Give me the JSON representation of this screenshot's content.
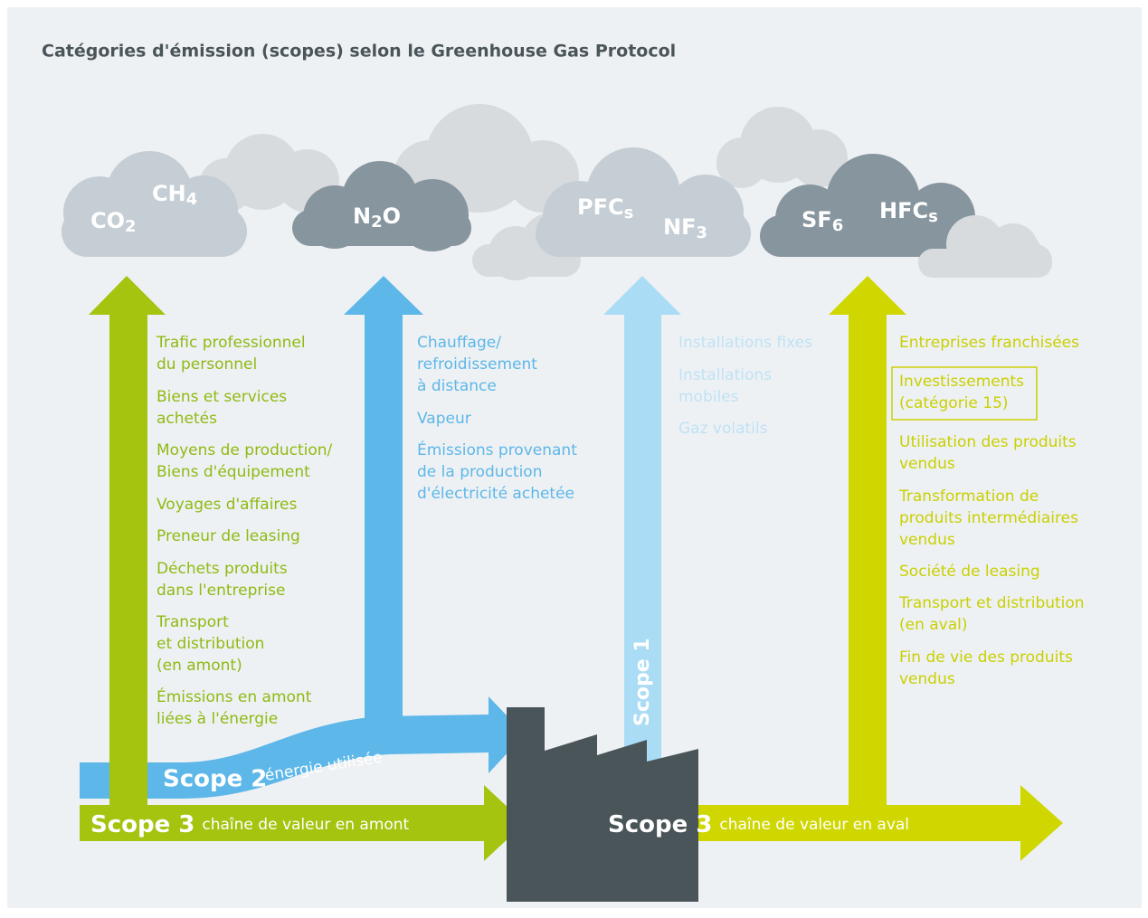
{
  "title": "Catégories d'émission (scopes) selon le Greenhouse Gas Protocol",
  "clouds": [
    [
      {
        "text": "CO"
      },
      {
        "text": "2",
        "sub": true
      }
    ],
    [
      {
        "text": "CH"
      },
      {
        "text": "4",
        "sub": true
      }
    ],
    [
      {
        "text": "N"
      },
      {
        "text": "2",
        "sub": true
      },
      {
        "text": "O"
      }
    ],
    [
      {
        "text": "PFC"
      },
      {
        "text": "s",
        "sub": true
      }
    ],
    [
      {
        "text": "NF"
      },
      {
        "text": "3",
        "sub": true
      }
    ],
    [
      {
        "text": "SF"
      },
      {
        "text": "6",
        "sub": true
      }
    ],
    [
      {
        "text": "HFC"
      },
      {
        "text": "s",
        "sub": true
      }
    ]
  ],
  "columns": [
    {
      "color": "#8fba12",
      "items": [
        {
          "lines": [
            "Trafic professionnel",
            "du personnel"
          ]
        },
        {
          "lines": [
            "Biens et services",
            "achetés"
          ]
        },
        {
          "lines": [
            "Moyens de production/",
            "Biens d'équipement"
          ]
        },
        {
          "lines": [
            "Voyages d'affaires"
          ]
        },
        {
          "lines": [
            "Preneur de leasing"
          ]
        },
        {
          "lines": [
            "Déchets produits",
            "dans l'entreprise"
          ]
        },
        {
          "lines": [
            "Transport",
            "et distribution",
            "(en amont)"
          ]
        },
        {
          "lines": [
            "Émissions en amont",
            "liées à l'énergie"
          ]
        }
      ]
    },
    {
      "color": "#5db7e8",
      "items": [
        {
          "lines": [
            "Chauffage/",
            "refroidissement",
            "à distance"
          ]
        },
        {
          "lines": [
            "Vapeur"
          ]
        },
        {
          "lines": [
            "Émissions provenant",
            "de la production",
            "d'électricité achetée"
          ]
        }
      ]
    },
    {
      "color": "#bfe2f4",
      "items": [
        {
          "lines": [
            "Installations fixes"
          ]
        },
        {
          "lines": [
            "Installations",
            "mobiles"
          ]
        },
        {
          "lines": [
            "Gaz volatils"
          ]
        }
      ]
    },
    {
      "color": "#c9d000",
      "items": [
        {
          "lines": [
            "Entreprises franchisées"
          ]
        },
        {
          "lines": [
            "Investissements",
            "(catégorie 15)"
          ],
          "boxed": true
        },
        {
          "lines": [
            "Utilisation des produits",
            "vendus"
          ]
        },
        {
          "lines": [
            "Transformation de",
            "produits intermédiaires",
            "vendus"
          ]
        },
        {
          "lines": [
            "Société de leasing"
          ]
        },
        {
          "lines": [
            "Transport et distribution",
            "(en aval)"
          ]
        },
        {
          "lines": [
            "Fin de vie des produits",
            "vendus"
          ]
        }
      ]
    }
  ],
  "scopes": {
    "upstream": {
      "name": "Scope 3",
      "caption": "chaîne de valeur en amont"
    },
    "energy": {
      "name": "Scope 2",
      "caption": "énergie utilisée"
    },
    "direct": {
      "name": "Scope 1"
    },
    "downstream": {
      "name": "Scope 3",
      "caption": "chaîne de valeur en aval"
    }
  }
}
